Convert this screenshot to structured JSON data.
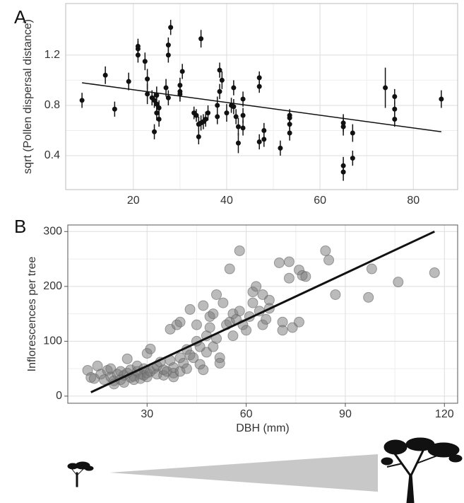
{
  "chart_data": [
    {
      "type": "errorscatter",
      "panel_label": "A",
      "ylabel": "sqrt (Pollen dispersal distance)",
      "color": "#111111",
      "x": [
        9,
        14,
        16,
        19,
        21,
        21,
        21,
        22.5,
        23,
        23,
        24,
        24.5,
        24.5,
        25,
        25,
        25.5,
        25.5,
        25,
        27,
        27.5,
        27.5,
        27.5,
        28,
        30,
        30,
        30.5,
        30,
        33,
        33.5,
        34,
        34,
        34.5,
        34.5,
        35,
        35.5,
        36,
        38,
        38,
        38.5,
        38.5,
        39,
        40,
        41,
        41.5,
        41.5,
        42,
        42.5,
        42.5,
        43.5,
        43.5,
        43.5,
        47,
        47,
        47,
        48,
        48,
        51.5,
        53.5,
        53.5,
        53.5,
        53.5,
        65,
        65,
        65,
        65,
        67,
        67,
        74,
        76,
        76,
        76,
        86
      ],
      "values": [
        0.84,
        1.04,
        0.77,
        0.99,
        1.27,
        1.25,
        1.2,
        1.15,
        1.01,
        0.89,
        0.86,
        0.84,
        0.59,
        0.88,
        0.81,
        0.78,
        0.69,
        0.74,
        0.94,
        1.28,
        1.2,
        0.86,
        1.42,
        0.91,
        0.96,
        1.07,
        0.89,
        0.74,
        0.72,
        0.65,
        0.55,
        1.33,
        0.66,
        0.67,
        0.69,
        0.74,
        0.8,
        0.71,
        1.08,
        0.91,
        1.0,
        0.74,
        0.8,
        0.94,
        0.79,
        0.71,
        0.63,
        0.5,
        0.85,
        0.72,
        0.62,
        1.02,
        0.95,
        0.51,
        0.6,
        0.53,
        0.46,
        0.72,
        0.7,
        0.65,
        0.58,
        0.66,
        0.63,
        0.32,
        0.27,
        0.58,
        0.38,
        0.94,
        0.87,
        0.77,
        0.69,
        0.85
      ],
      "errors": [
        0.06,
        0.07,
        0.06,
        0.07,
        0.06,
        0.06,
        0.06,
        0.07,
        0.08,
        0.08,
        0.06,
        0.06,
        0.06,
        0.07,
        0.06,
        0.06,
        0.06,
        0.06,
        0.07,
        0.06,
        0.06,
        0.06,
        0.06,
        0.06,
        0.06,
        0.06,
        0.06,
        0.05,
        0.05,
        0.06,
        0.06,
        0.07,
        0.06,
        0.06,
        0.06,
        0.06,
        0.07,
        0.06,
        0.06,
        0.06,
        0.07,
        0.07,
        0.06,
        0.06,
        0.06,
        0.06,
        0.07,
        0.08,
        0.06,
        0.06,
        0.06,
        0.05,
        0.05,
        0.06,
        0.06,
        0.06,
        0.06,
        0.05,
        0.05,
        0.06,
        0.06,
        0.07,
        0.07,
        0.07,
        0.07,
        0.07,
        0.06,
        0.16,
        0.06,
        0.06,
        0.06,
        0.07
      ],
      "fit_line": {
        "x": [
          9,
          86
        ],
        "values": [
          0.98,
          0.59
        ]
      },
      "xlim": [
        5.5,
        89.5
      ],
      "ylim": [
        0.13,
        1.61
      ],
      "xticks": [
        20,
        40,
        60,
        80
      ],
      "yticks": [
        0.4,
        0.8,
        1.2
      ],
      "grid": true
    },
    {
      "type": "scatter",
      "panel_label": "B",
      "xlabel": "DBH (mm)",
      "ylabel": "Inflorescences per tree",
      "color": "#777777",
      "x": [
        12,
        13,
        14,
        15,
        16,
        17,
        18,
        19,
        19,
        20,
        20,
        21,
        22,
        22,
        23,
        23,
        24,
        24,
        25,
        25,
        26,
        26,
        27,
        27,
        28,
        28,
        29,
        29,
        30,
        30,
        30,
        31,
        31,
        32,
        33,
        33,
        34,
        35,
        35,
        36,
        37,
        37,
        38,
        38,
        38,
        39,
        40,
        40,
        40,
        41,
        42,
        42,
        43,
        43,
        44,
        45,
        45,
        46,
        46,
        47,
        47,
        48,
        48,
        49,
        49,
        50,
        50,
        51,
        51,
        52,
        52,
        53,
        54,
        55,
        55,
        56,
        56,
        57,
        58,
        58,
        59,
        60,
        61,
        62,
        62,
        63,
        64,
        65,
        65,
        66,
        67,
        67,
        70,
        71,
        71,
        73,
        73,
        74,
        76,
        76,
        77,
        78,
        84,
        85,
        87,
        97,
        98,
        106,
        117
      ],
      "values": [
        47,
        34,
        32,
        55,
        40,
        30,
        47,
        35,
        50,
        28,
        22,
        40,
        45,
        30,
        38,
        25,
        68,
        42,
        34,
        48,
        36,
        30,
        45,
        55,
        40,
        32,
        38,
        50,
        78,
        42,
        35,
        86,
        45,
        50,
        40,
        55,
        62,
        38,
        48,
        45,
        65,
        122,
        35,
        42,
        52,
        130,
        135,
        45,
        70,
        60,
        85,
        50,
        158,
        75,
        70,
        100,
        130,
        90,
        58,
        165,
        48,
        110,
        80,
        145,
        125,
        150,
        90,
        105,
        185,
        70,
        60,
        170,
        130,
        135,
        232,
        150,
        110,
        140,
        265,
        155,
        130,
        120,
        145,
        190,
        170,
        200,
        155,
        185,
        130,
        140,
        175,
        160,
        243,
        135,
        120,
        215,
        245,
        125,
        230,
        135,
        220,
        218,
        265,
        248,
        185,
        180,
        232,
        208,
        225
      ],
      "fit_line": {
        "x": [
          13,
          117
        ],
        "values": [
          7,
          300
        ]
      },
      "xlim": [
        6,
        124
      ],
      "ylim": [
        -13,
        312
      ],
      "xticks": [
        30,
        60,
        90,
        120
      ],
      "yticks": [
        0,
        100,
        200,
        300
      ],
      "grid": true
    }
  ]
}
